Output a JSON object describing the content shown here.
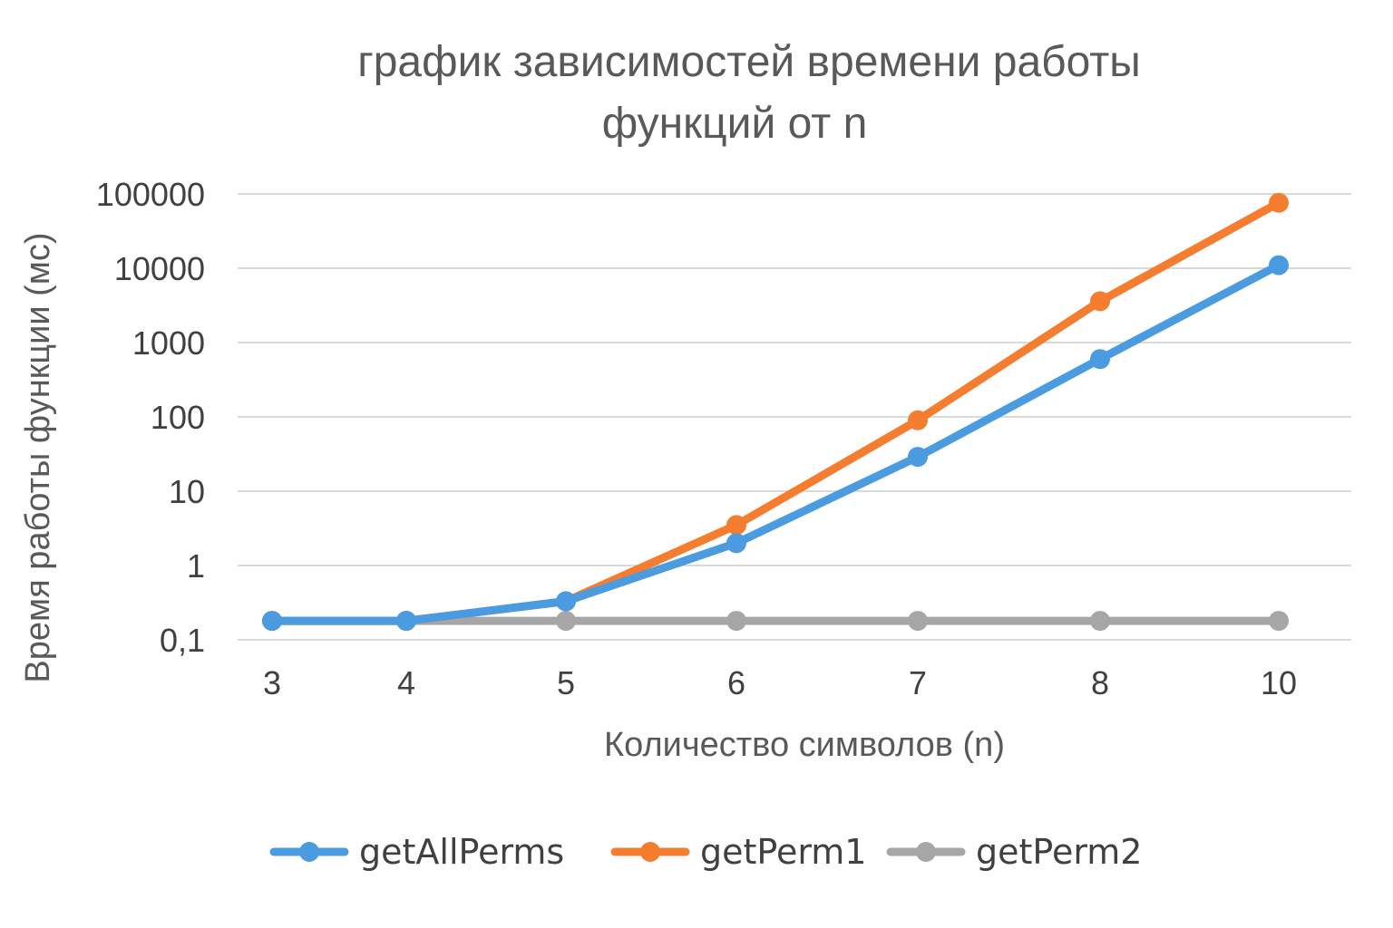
{
  "chart_data": {
    "type": "line",
    "title": [
      "график зависимостей времени работы",
      "функций от n"
    ],
    "xlabel": "Количество символов (n)",
    "ylabel": "Время работы функции (мс)",
    "yscale": "log",
    "ylim": [
      0.1,
      100000
    ],
    "y_ticks": [
      "0,1",
      "1",
      "10",
      "100",
      "1000",
      "10000",
      "100000"
    ],
    "categories": [
      "3",
      "4",
      "5",
      "6",
      "7",
      "8",
      "10"
    ],
    "grid": true,
    "legend": "bottom",
    "series": [
      {
        "name": "getAllPerms",
        "color": "#4a9be0",
        "values": [
          0.18,
          0.18,
          0.33,
          2,
          29,
          600,
          11000
        ]
      },
      {
        "name": "getPerm1",
        "color": "#f47d30",
        "values": [
          0.18,
          0.18,
          0.33,
          3.5,
          90,
          3600,
          76000
        ]
      },
      {
        "name": "getPerm2",
        "color": "#a6a6a6",
        "values": [
          0.18,
          0.18,
          0.18,
          0.18,
          0.18,
          0.18,
          0.18
        ]
      }
    ]
  }
}
